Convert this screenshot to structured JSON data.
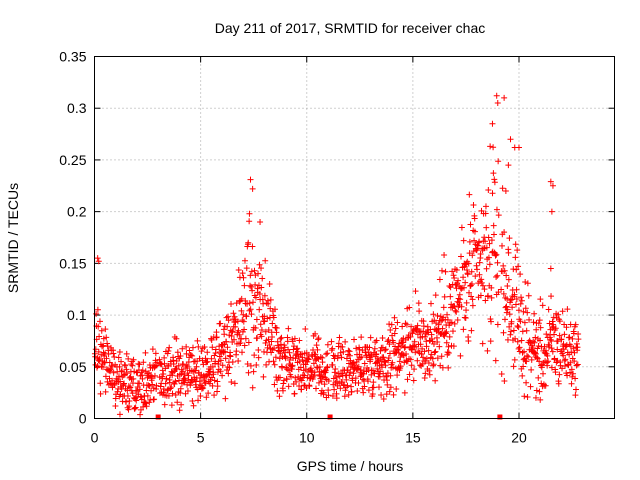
{
  "chart_data": {
    "type": "scatter",
    "title": "Day 211 of 2017, SRMTID for receiver chac",
    "xlabel": "GPS time / hours",
    "ylabel": "SRMTID / TECUs",
    "xlim": [
      0,
      24.5
    ],
    "ylim": [
      0,
      0.35
    ],
    "xticks": [
      0,
      5,
      10,
      15,
      20
    ],
    "xtick_labels": [
      "0",
      "5",
      "10",
      "15",
      "20"
    ],
    "yticks": [
      0,
      0.05,
      0.1,
      0.15,
      0.2,
      0.25,
      0.3,
      0.35
    ],
    "ytick_labels": [
      "0",
      "0.05",
      "0.1",
      "0.15",
      "0.2",
      "0.25",
      "0.3",
      "0.35"
    ],
    "grid": true,
    "marker": "+",
    "marker_color": "#ff0000",
    "gap_markers_x": [
      3.0,
      11.1,
      19.1
    ],
    "profile": {
      "x": [
        0.0,
        0.2,
        0.5,
        1.0,
        1.5,
        2.0,
        2.5,
        3.0,
        3.5,
        4.0,
        4.5,
        5.0,
        5.5,
        6.0,
        6.5,
        6.8,
        7.0,
        7.3,
        7.6,
        7.9,
        8.2,
        8.5,
        9.0,
        9.5,
        10.0,
        10.5,
        11.0,
        11.5,
        12.0,
        12.5,
        13.0,
        13.5,
        14.0,
        14.5,
        15.0,
        15.5,
        16.0,
        16.5,
        17.0,
        17.5,
        18.0,
        18.5,
        18.8,
        19.0,
        19.3,
        19.6,
        19.9,
        20.2,
        20.5,
        21.0,
        21.3,
        21.6,
        22.0,
        22.4,
        22.8
      ],
      "median": [
        0.065,
        0.07,
        0.055,
        0.04,
        0.035,
        0.032,
        0.034,
        0.04,
        0.04,
        0.042,
        0.045,
        0.048,
        0.052,
        0.06,
        0.075,
        0.085,
        0.11,
        0.12,
        0.095,
        0.1,
        0.09,
        0.07,
        0.06,
        0.055,
        0.05,
        0.048,
        0.045,
        0.045,
        0.048,
        0.05,
        0.055,
        0.055,
        0.06,
        0.07,
        0.075,
        0.072,
        0.078,
        0.095,
        0.11,
        0.13,
        0.14,
        0.15,
        0.16,
        0.165,
        0.13,
        0.12,
        0.1,
        0.08,
        0.07,
        0.065,
        0.06,
        0.075,
        0.07,
        0.065,
        0.06
      ],
      "spread": [
        0.025,
        0.03,
        0.025,
        0.02,
        0.02,
        0.018,
        0.02,
        0.02,
        0.022,
        0.022,
        0.022,
        0.022,
        0.025,
        0.025,
        0.03,
        0.035,
        0.045,
        0.045,
        0.04,
        0.04,
        0.035,
        0.03,
        0.025,
        0.022,
        0.022,
        0.022,
        0.02,
        0.02,
        0.022,
        0.022,
        0.022,
        0.022,
        0.025,
        0.028,
        0.03,
        0.03,
        0.032,
        0.035,
        0.04,
        0.045,
        0.05,
        0.06,
        0.07,
        0.07,
        0.06,
        0.05,
        0.045,
        0.035,
        0.03,
        0.03,
        0.03,
        0.035,
        0.03,
        0.025,
        0.022
      ]
    },
    "outliers": [
      {
        "x": 0.15,
        "y": 0.155
      },
      {
        "x": 0.2,
        "y": 0.152
      },
      {
        "x": 1.2,
        "y": 0.004
      },
      {
        "x": 7.35,
        "y": 0.231
      },
      {
        "x": 7.45,
        "y": 0.222
      },
      {
        "x": 7.3,
        "y": 0.198
      },
      {
        "x": 7.8,
        "y": 0.19
      },
      {
        "x": 18.75,
        "y": 0.285
      },
      {
        "x": 18.95,
        "y": 0.312
      },
      {
        "x": 19.0,
        "y": 0.305
      },
      {
        "x": 19.3,
        "y": 0.31
      },
      {
        "x": 19.6,
        "y": 0.27
      },
      {
        "x": 19.8,
        "y": 0.262
      },
      {
        "x": 20.0,
        "y": 0.262
      },
      {
        "x": 19.5,
        "y": 0.245
      },
      {
        "x": 21.5,
        "y": 0.229
      },
      {
        "x": 21.6,
        "y": 0.225
      },
      {
        "x": 21.55,
        "y": 0.2
      },
      {
        "x": 21.5,
        "y": 0.145
      },
      {
        "x": 20.8,
        "y": 0.02
      },
      {
        "x": 21.0,
        "y": 0.018
      }
    ]
  }
}
